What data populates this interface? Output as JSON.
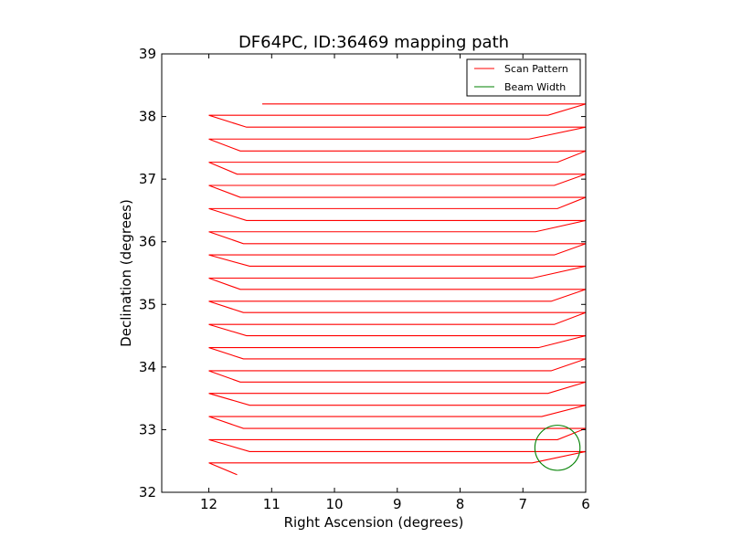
{
  "chart_data": {
    "type": "line",
    "title": "DF64PC, ID:36469 mapping path",
    "xlabel": "Right Ascension (degrees)",
    "ylabel": "Declination (degrees)",
    "xlim": [
      12.75,
      6
    ],
    "ylim": [
      32,
      39
    ],
    "x_ticks": [
      12,
      11,
      10,
      9,
      8,
      7,
      6
    ],
    "y_ticks": [
      32,
      33,
      34,
      35,
      36,
      37,
      38,
      39
    ],
    "x_tick_labels": [
      "12",
      "11",
      "10",
      "9",
      "8",
      "7",
      "6"
    ],
    "y_tick_labels": [
      "32",
      "33",
      "34",
      "35",
      "36",
      "37",
      "38",
      "39"
    ],
    "grid": false,
    "legend_position": "top-right",
    "series": [
      {
        "name": "Scan Pattern",
        "color": "#ff0000",
        "x": [
          11.15,
          6.0,
          6.6,
          12.0,
          11.4,
          6.0,
          6.9,
          12.0,
          11.5,
          6.0,
          6.45,
          12.0,
          11.55,
          6.0,
          6.5,
          12.0,
          11.5,
          6.0,
          6.45,
          12.0,
          11.4,
          6.0,
          6.8,
          12.0,
          11.45,
          6.0,
          6.5,
          12.0,
          11.35,
          6.0,
          6.85,
          12.0,
          11.5,
          6.0,
          6.55,
          12.0,
          11.45,
          6.0,
          6.5,
          12.0,
          11.4,
          6.0,
          6.75,
          12.0,
          11.45,
          6.0,
          6.55,
          12.0,
          11.5,
          6.0,
          6.6,
          12.0,
          11.35,
          6.0,
          6.7,
          12.0,
          11.45,
          6.0,
          6.45,
          12.0,
          11.35,
          6.0,
          6.85,
          12.0,
          11.55
        ],
        "y": [
          38.2,
          38.2,
          38.02,
          38.02,
          37.83,
          37.83,
          37.64,
          37.64,
          37.45,
          37.45,
          37.27,
          37.27,
          37.08,
          37.08,
          36.9,
          36.9,
          36.71,
          36.71,
          36.53,
          36.53,
          36.34,
          36.34,
          36.16,
          36.16,
          35.97,
          35.97,
          35.79,
          35.79,
          35.61,
          35.61,
          35.42,
          35.42,
          35.24,
          35.24,
          35.05,
          35.05,
          34.87,
          34.87,
          34.68,
          34.68,
          34.5,
          34.5,
          34.31,
          34.31,
          34.13,
          34.13,
          33.94,
          33.94,
          33.76,
          33.76,
          33.58,
          33.58,
          33.39,
          33.39,
          33.21,
          33.21,
          33.02,
          33.02,
          32.84,
          32.84,
          32.65,
          32.65,
          32.47,
          32.47,
          32.28
        ]
      },
      {
        "name": "Beam Width",
        "color": "#008000",
        "center": [
          6.45,
          32.71
        ],
        "radius": 0.36
      }
    ]
  }
}
